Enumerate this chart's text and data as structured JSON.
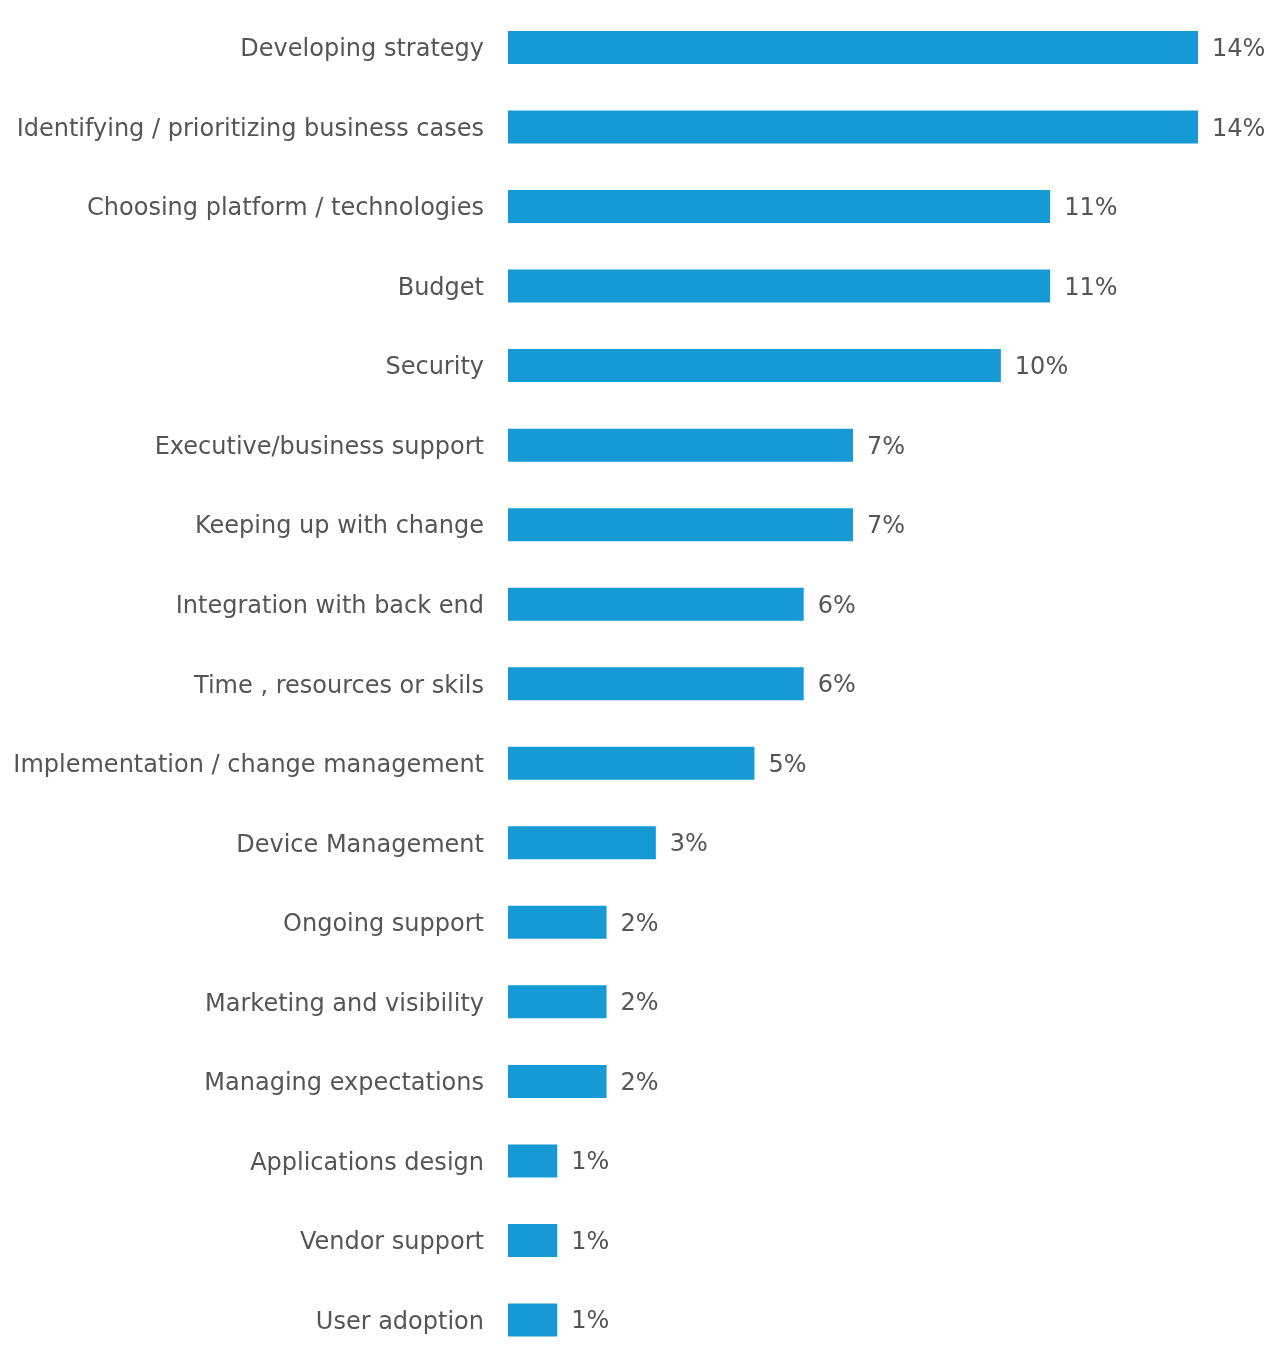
{
  "chart_data": {
    "type": "bar",
    "orientation": "horizontal",
    "categories": [
      "Developing strategy",
      "Identifying / prioritizing business cases",
      "Choosing platform / technologies",
      "Budget",
      "Security",
      "Executive/business support",
      "Keeping up with change",
      "Integration with back end",
      "Time , resources or skils",
      "Implementation / change management",
      "Device Management",
      "Ongoing support",
      "Marketing and visibility",
      "Managing expectations",
      "Applications design",
      "Vendor support",
      "User adoption"
    ],
    "values": [
      14,
      14,
      11,
      11,
      10,
      7,
      7,
      6,
      6,
      5,
      3,
      2,
      2,
      2,
      1,
      1,
      1
    ],
    "value_labels": [
      "14%",
      "14%",
      "11%",
      "11%",
      "10%",
      "7%",
      "7%",
      "6%",
      "6%",
      "5%",
      "3%",
      "2%",
      "2%",
      "2%",
      "1%",
      "1%",
      "1%"
    ],
    "color": "#159ad6"
  }
}
